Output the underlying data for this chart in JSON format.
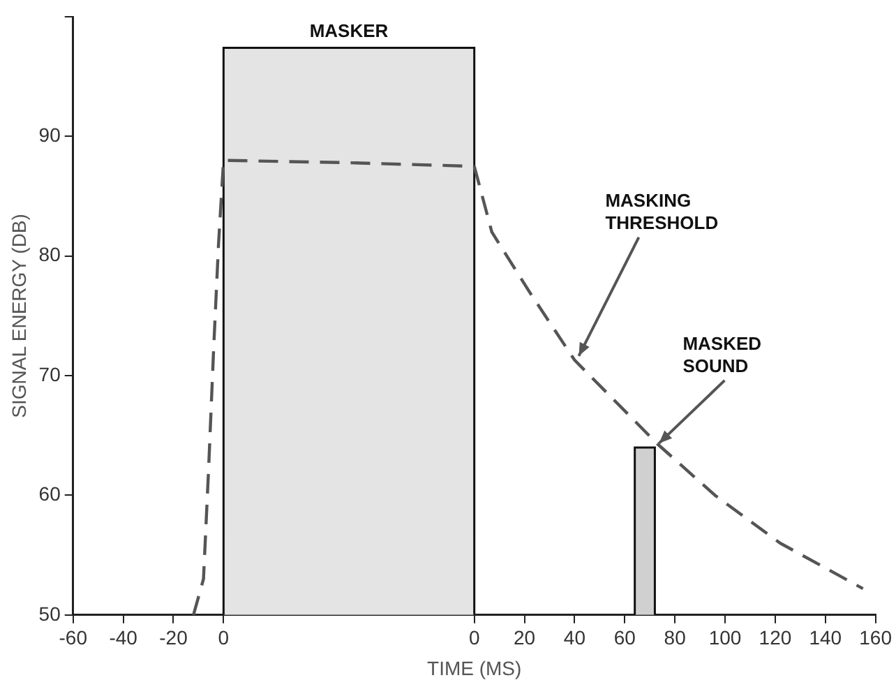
{
  "chart_data": {
    "type": "line",
    "xlabel": "TIME (MS)",
    "ylabel": "SIGNAL ENERGY (DB)",
    "xlim": [
      -60,
      260
    ],
    "ylim": [
      50,
      100
    ],
    "x2lim": [
      -160,
      160
    ],
    "xticks": [
      -60,
      -40,
      -20,
      0
    ],
    "x2ticks": [
      0,
      20,
      40,
      60,
      80,
      100,
      120,
      140,
      160
    ],
    "yticks": [
      50,
      60,
      70,
      80,
      90,
      {
        "value": 100,
        "label": null
      }
    ],
    "grid": false,
    "legend": false,
    "marker": "none",
    "line_style": "dashed",
    "series": [
      {
        "type": "area",
        "color": "#e4e4e4",
        "x": [
          0,
          0,
          100,
          100
        ],
        "values": [
          50,
          97.4,
          97.4,
          50
        ]
      },
      {
        "type": "area",
        "color": "#d0d0d0",
        "axis": "x2",
        "x": [
          64,
          64,
          72,
          72
        ],
        "values": [
          50,
          64,
          64,
          50
        ]
      },
      {
        "color": "#555555",
        "x": [
          -12,
          -8,
          -6,
          -4,
          -2,
          0,
          50,
          100
        ],
        "values": [
          50,
          53,
          62,
          72,
          81,
          88,
          87.8,
          87.5
        ]
      },
      {
        "color": "#555555",
        "axis": "x2",
        "x": [
          0,
          7,
          22,
          40,
          73,
          96,
          122,
          155
        ],
        "values": [
          87.5,
          82,
          77,
          71.3,
          64.3,
          60,
          56,
          52.2
        ]
      }
    ],
    "annotations": [
      {
        "text": "MASKER",
        "x": 50,
        "y": 97.4
      },
      {
        "text": "MASKING THRESHOLD",
        "x": 140,
        "y": 71.3
      },
      {
        "text": "MASKED SOUND",
        "x": 172,
        "y": 64
      }
    ]
  }
}
